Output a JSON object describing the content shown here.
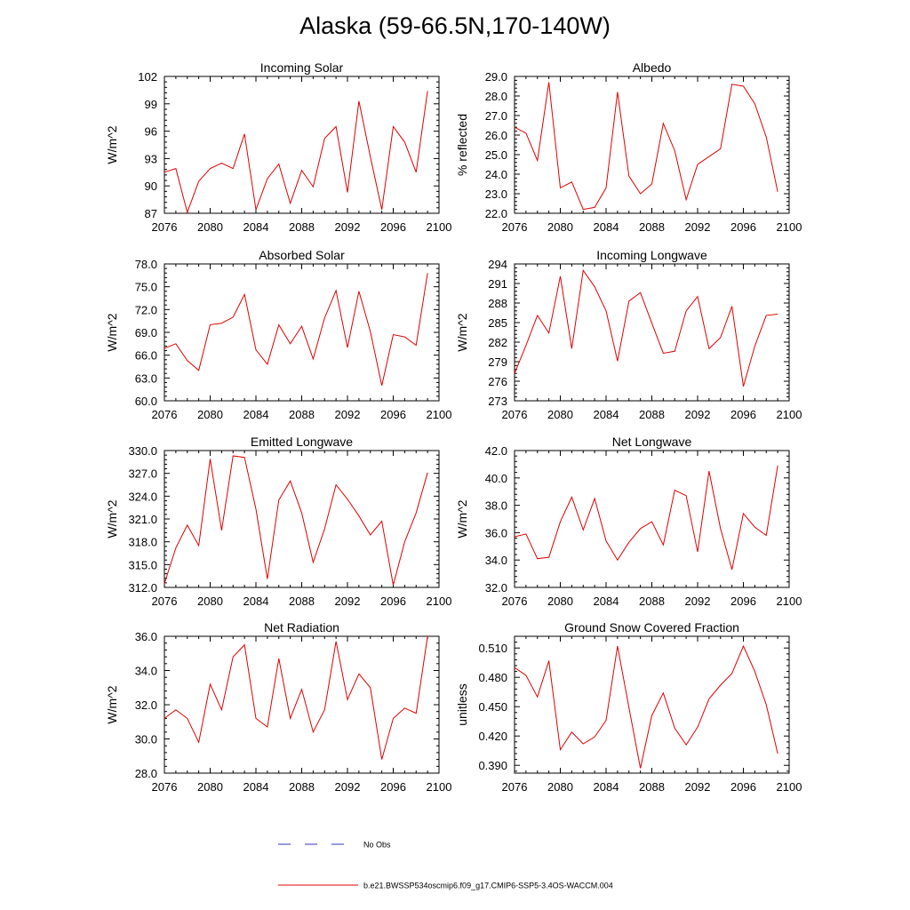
{
  "figure_title": "Alaska (59-66.5N,170-140W)",
  "legend": {
    "obs_label": "No Obs",
    "obs_color": "#3333bb",
    "model_label": "b.e21.BWSSP534oscmip6.f09_g17.CMIP6-SSP5-3.4OS-WACCM.004",
    "model_color": "#e00000"
  },
  "chart_data": [
    {
      "type": "line",
      "title": "Incoming Solar",
      "ylabel": "W/m^2",
      "xlim": [
        2076,
        2100
      ],
      "ylim": [
        87,
        102
      ],
      "xticks": [
        "2076",
        "2080",
        "2084",
        "2088",
        "2092",
        "2096",
        "2100"
      ],
      "yticks": [
        "87",
        "90",
        "93",
        "96",
        "99",
        "102"
      ],
      "x": [
        2076,
        2077,
        2078,
        2079,
        2080,
        2081,
        2082,
        2083,
        2084,
        2085,
        2086,
        2087,
        2088,
        2089,
        2090,
        2091,
        2092,
        2093,
        2094,
        2095,
        2096,
        2097,
        2098,
        2099
      ],
      "values": [
        91.5,
        91.9,
        87.1,
        90.5,
        91.9,
        92.5,
        91.9,
        95.7,
        87.4,
        90.8,
        92.4,
        88.1,
        91.7,
        89.9,
        95.2,
        96.5,
        89.3,
        99.3,
        93.2,
        87.4,
        96.5,
        94.8,
        91.5,
        100.4
      ]
    },
    {
      "type": "line",
      "title": "Albedo",
      "ylabel": "% reflected",
      "xlim": [
        2076,
        2100
      ],
      "ylim": [
        22.0,
        29.0
      ],
      "xticks": [
        "2076",
        "2080",
        "2084",
        "2088",
        "2092",
        "2096",
        "2100"
      ],
      "yticks": [
        "22.0",
        "23.0",
        "24.0",
        "25.0",
        "26.0",
        "27.0",
        "28.0",
        "29.0"
      ],
      "x": [
        2076,
        2077,
        2078,
        2079,
        2080,
        2081,
        2082,
        2083,
        2084,
        2085,
        2086,
        2087,
        2088,
        2089,
        2090,
        2091,
        2092,
        2093,
        2094,
        2095,
        2096,
        2097,
        2098,
        2099
      ],
      "values": [
        26.4,
        26.1,
        24.7,
        28.7,
        23.3,
        23.6,
        22.2,
        22.3,
        23.3,
        28.2,
        23.9,
        23.0,
        23.5,
        26.6,
        25.2,
        22.7,
        24.5,
        24.9,
        25.3,
        28.6,
        28.5,
        27.6,
        25.9,
        23.1
      ]
    },
    {
      "type": "line",
      "title": "Absorbed Solar",
      "ylabel": "W/m^2",
      "xlim": [
        2076,
        2100
      ],
      "ylim": [
        60.0,
        78.0
      ],
      "xticks": [
        "2076",
        "2080",
        "2084",
        "2088",
        "2092",
        "2096",
        "2100"
      ],
      "yticks": [
        "60.0",
        "63.0",
        "66.0",
        "69.0",
        "72.0",
        "75.0",
        "78.0"
      ],
      "x": [
        2076,
        2077,
        2078,
        2079,
        2080,
        2081,
        2082,
        2083,
        2084,
        2085,
        2086,
        2087,
        2088,
        2089,
        2090,
        2091,
        2092,
        2093,
        2094,
        2095,
        2096,
        2097,
        2098,
        2099
      ],
      "values": [
        66.9,
        67.5,
        65.3,
        64.0,
        70.0,
        70.2,
        71.0,
        74.0,
        66.7,
        64.8,
        70.0,
        67.5,
        69.8,
        65.5,
        70.9,
        74.5,
        67.0,
        74.4,
        69.1,
        62.0,
        68.7,
        68.4,
        67.3,
        76.8
      ]
    },
    {
      "type": "line",
      "title": "Incoming Longwave",
      "ylabel": "W/m^2",
      "xlim": [
        2076,
        2100
      ],
      "ylim": [
        273,
        294
      ],
      "xticks": [
        "2076",
        "2080",
        "2084",
        "2088",
        "2092",
        "2096",
        "2100"
      ],
      "yticks": [
        "273",
        "276",
        "279",
        "282",
        "285",
        "288",
        "291",
        "294"
      ],
      "x": [
        2076,
        2077,
        2078,
        2079,
        2080,
        2081,
        2082,
        2083,
        2084,
        2085,
        2086,
        2087,
        2088,
        2089,
        2090,
        2091,
        2092,
        2093,
        2094,
        2095,
        2096,
        2097,
        2098,
        2099
      ],
      "values": [
        277.2,
        281.5,
        286.1,
        283.4,
        292.1,
        281.0,
        293.0,
        290.5,
        286.8,
        279.1,
        288.3,
        289.6,
        284.9,
        280.3,
        280.6,
        286.8,
        289.0,
        281.0,
        282.7,
        287.5,
        275.2,
        281.4,
        286.1,
        286.3
      ]
    },
    {
      "type": "line",
      "title": "Emitted Longwave",
      "ylabel": "W/m^2",
      "xlim": [
        2076,
        2100
      ],
      "ylim": [
        312.0,
        330.0
      ],
      "xticks": [
        "2076",
        "2080",
        "2084",
        "2088",
        "2092",
        "2096",
        "2100"
      ],
      "yticks": [
        "312.0",
        "315.0",
        "318.0",
        "321.0",
        "324.0",
        "327.0",
        "330.0"
      ],
      "x": [
        2076,
        2077,
        2078,
        2079,
        2080,
        2081,
        2082,
        2083,
        2084,
        2085,
        2086,
        2087,
        2088,
        2089,
        2090,
        2091,
        2092,
        2093,
        2094,
        2095,
        2096,
        2097,
        2098,
        2099
      ],
      "values": [
        312.5,
        317.2,
        320.2,
        317.5,
        328.9,
        319.5,
        329.3,
        329.1,
        322.3,
        313.1,
        323.5,
        326.0,
        321.8,
        315.3,
        319.7,
        325.5,
        323.6,
        321.4,
        318.9,
        320.7,
        312.3,
        318.0,
        321.8,
        327.1
      ]
    },
    {
      "type": "line",
      "title": "Net Longwave",
      "ylabel": "W/m^2",
      "xlim": [
        2076,
        2100
      ],
      "ylim": [
        32.0,
        42.0
      ],
      "xticks": [
        "2076",
        "2080",
        "2084",
        "2088",
        "2092",
        "2096",
        "2100"
      ],
      "yticks": [
        "32.0",
        "34.0",
        "36.0",
        "38.0",
        "40.0",
        "42.0"
      ],
      "x": [
        2076,
        2077,
        2078,
        2079,
        2080,
        2081,
        2082,
        2083,
        2084,
        2085,
        2086,
        2087,
        2088,
        2089,
        2090,
        2091,
        2092,
        2093,
        2094,
        2095,
        2096,
        2097,
        2098,
        2099
      ],
      "values": [
        35.7,
        35.9,
        34.1,
        34.2,
        36.8,
        38.6,
        36.2,
        38.5,
        35.4,
        34.0,
        35.3,
        36.3,
        36.8,
        35.1,
        39.1,
        38.7,
        34.6,
        40.5,
        36.3,
        33.3,
        37.4,
        36.4,
        35.8,
        40.9
      ]
    },
    {
      "type": "line",
      "title": "Net Radiation",
      "ylabel": "W/m^2",
      "xlim": [
        2076,
        2100
      ],
      "ylim": [
        28.0,
        36.0
      ],
      "xticks": [
        "2076",
        "2080",
        "2084",
        "2088",
        "2092",
        "2096",
        "2100"
      ],
      "yticks": [
        "28.0",
        "30.0",
        "32.0",
        "34.0",
        "36.0"
      ],
      "x": [
        2076,
        2077,
        2078,
        2079,
        2080,
        2081,
        2082,
        2083,
        2084,
        2085,
        2086,
        2087,
        2088,
        2089,
        2090,
        2091,
        2092,
        2093,
        2094,
        2095,
        2096,
        2097,
        2098,
        2099
      ],
      "values": [
        31.2,
        31.7,
        31.2,
        29.8,
        33.2,
        31.7,
        34.8,
        35.5,
        31.2,
        30.7,
        34.7,
        31.2,
        32.9,
        30.4,
        31.7,
        35.7,
        32.3,
        33.8,
        33.0,
        28.8,
        31.2,
        31.8,
        31.5,
        36.0
      ]
    },
    {
      "type": "line",
      "title": "Ground Snow Covered Fraction",
      "ylabel": "unitless",
      "xlim": [
        2076,
        2100
      ],
      "ylim": [
        0.382,
        0.522
      ],
      "xticks": [
        "2076",
        "2080",
        "2084",
        "2088",
        "2092",
        "2096",
        "2100"
      ],
      "yticks": [
        "0.390",
        "0.420",
        "0.450",
        "0.480",
        "0.510"
      ],
      "x": [
        2076,
        2077,
        2078,
        2079,
        2080,
        2081,
        2082,
        2083,
        2084,
        2085,
        2086,
        2087,
        2088,
        2089,
        2090,
        2091,
        2092,
        2093,
        2094,
        2095,
        2096,
        2097,
        2098,
        2099
      ],
      "values": [
        0.49,
        0.482,
        0.46,
        0.497,
        0.406,
        0.424,
        0.412,
        0.419,
        0.436,
        0.512,
        0.449,
        0.387,
        0.441,
        0.464,
        0.428,
        0.411,
        0.429,
        0.458,
        0.472,
        0.484,
        0.512,
        0.486,
        0.452,
        0.402
      ]
    }
  ]
}
